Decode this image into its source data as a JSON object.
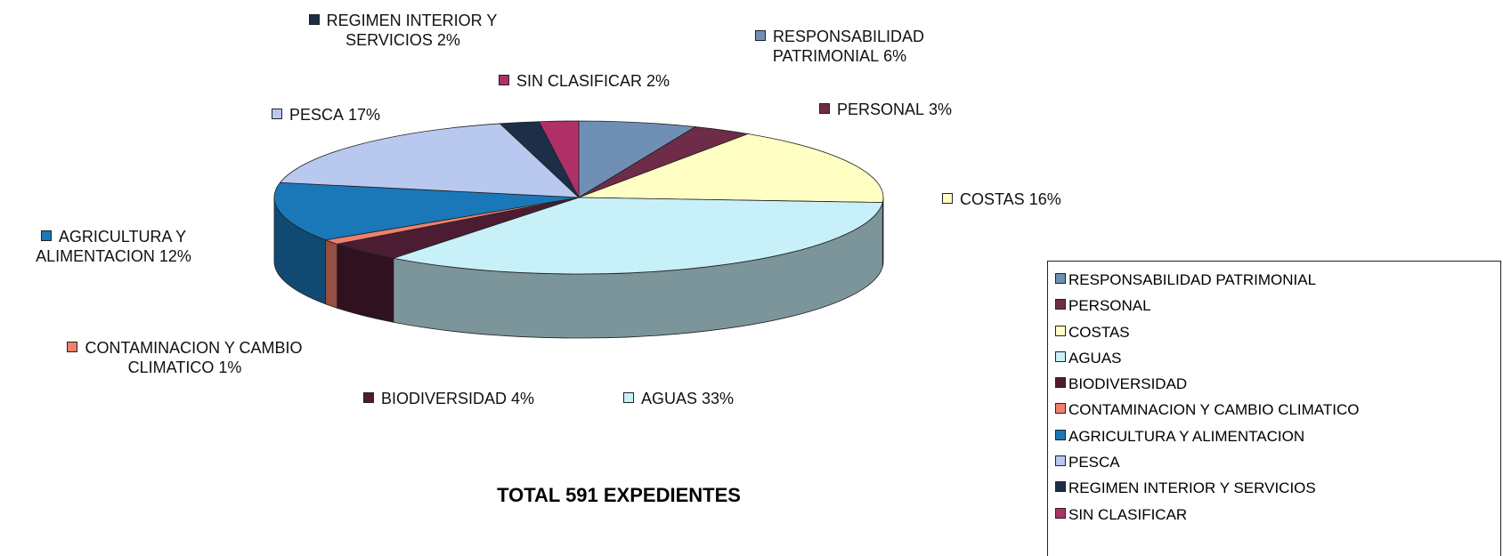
{
  "chart_data": {
    "type": "pie",
    "title": "TOTAL 591 EXPEDIENTES",
    "categories": [
      "RESPONSABILIDAD PATRIMONIAL",
      "PERSONAL",
      "COSTAS",
      "AGUAS",
      "BIODIVERSIDAD",
      "CONTAMINACION Y CAMBIO CLIMATICO",
      "AGRICULTURA Y ALIMENTACION",
      "PESCA",
      "REGIMEN INTERIOR Y SERVICIOS",
      "SIN CLASIFICAR"
    ],
    "values": [
      6,
      3,
      16,
      33,
      4,
      1,
      12,
      17,
      2,
      2
    ],
    "value_labels": [
      "6%",
      "3%",
      "16%",
      "33%",
      "4%",
      "1%",
      "12%",
      "17%",
      "2%",
      "2%"
    ],
    "colors": [
      "#6f8fb4",
      "#6e2c48",
      "#ffffc4",
      "#c8f0f8",
      "#4c1c32",
      "#f0806e",
      "#1a78b8",
      "#b8c8ee",
      "#1c2e48",
      "#b03068"
    ],
    "legend": "right"
  }
}
